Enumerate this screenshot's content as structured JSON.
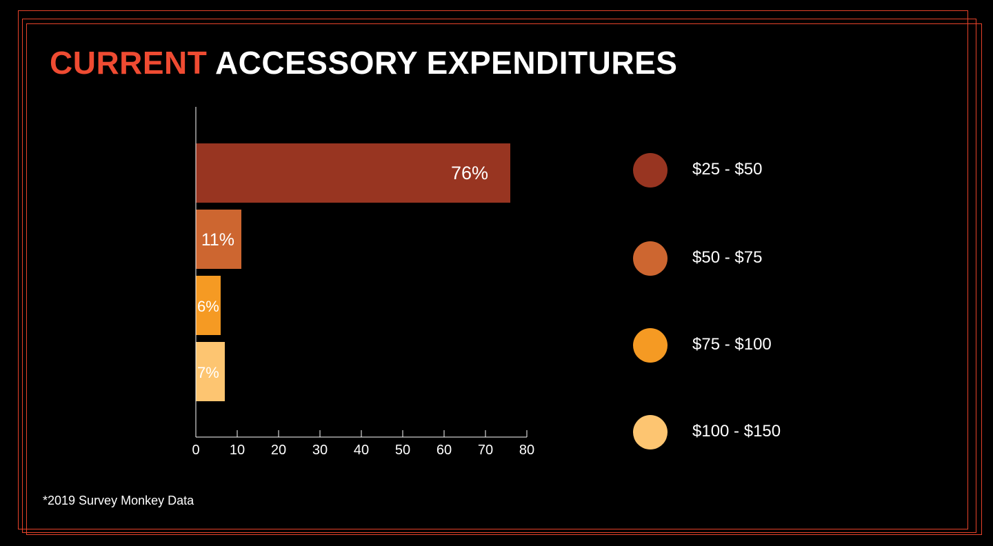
{
  "title": {
    "accent": "CURRENT",
    "rest": " ACCESSORY EXPENDITURES"
  },
  "colors": {
    "background": "#000000",
    "border": "#e8432a",
    "title_accent": "#ef4b32",
    "title_text": "#ffffff"
  },
  "chart_data": {
    "type": "bar",
    "orientation": "horizontal",
    "title": "CURRENT ACCESSORY EXPENDITURES",
    "categories": [
      "$25 - $50",
      "$50 - $75",
      "$75 - $100",
      "$100 - $150"
    ],
    "values": [
      76,
      11,
      6,
      7
    ],
    "data_labels": [
      "76%",
      "11%",
      "6%",
      "7%"
    ],
    "colors": [
      "#983521",
      "#cd6630",
      "#f59a23",
      "#fdc571"
    ],
    "xlim": [
      0,
      80
    ],
    "xticks": [
      0,
      10,
      20,
      30,
      40,
      50,
      60,
      70,
      80
    ],
    "xlabel": "",
    "ylabel": "",
    "grid": false,
    "legend_position": "right"
  },
  "footnote": "*2019 Survey Monkey Data"
}
